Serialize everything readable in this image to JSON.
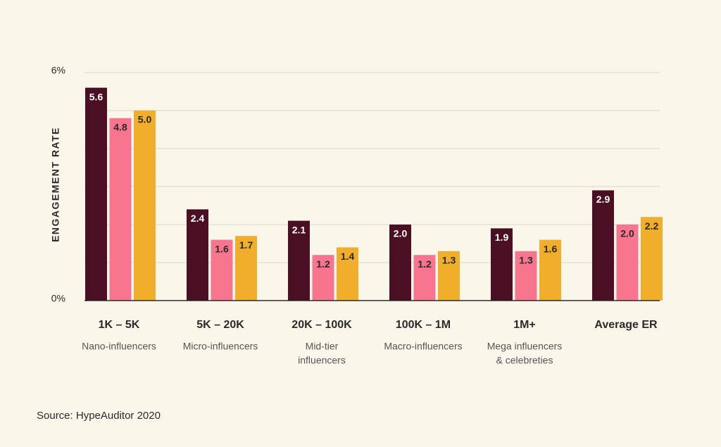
{
  "chart_data": {
    "type": "bar",
    "y_label": "ENGAGEMENT RATE",
    "source": "Source: HypeAuditor 2020",
    "categories": [
      "1K – 5K",
      "5K – 20K",
      "20K – 100K",
      "100K – 1M",
      "1M+",
      "Average ER"
    ],
    "category_descriptions": [
      [
        "Nano-influencers"
      ],
      [
        "Micro-influencers"
      ],
      [
        "Mid-tier",
        "influencers"
      ],
      [
        "Macro-influencers"
      ],
      [
        "Mega influencers",
        "& celebreties"
      ],
      []
    ],
    "series": [
      {
        "color": "#4a0f22",
        "label_color": "#ffffff",
        "values": [
          5.6,
          2.4,
          2.1,
          2.0,
          1.9,
          2.9
        ],
        "value_labels": [
          "5.6",
          "2.4",
          "2.1",
          "2.0",
          "1.9",
          "2.9"
        ]
      },
      {
        "color": "#f7758f",
        "label_color": "#2a2a2a",
        "values": [
          4.8,
          1.6,
          1.2,
          1.2,
          1.3,
          2.0
        ],
        "value_labels": [
          "4.8",
          "1.6",
          "1.2",
          "1.2",
          "1.3",
          "2.0"
        ]
      },
      {
        "color": "#f0ae2b",
        "label_color": "#2a2a2a",
        "values": [
          5.0,
          1.7,
          1.4,
          1.3,
          1.6,
          2.2
        ],
        "value_labels": [
          "5.0",
          "1.7",
          "1.4",
          "1.3",
          "1.6",
          "2.2"
        ]
      }
    ],
    "ylim": [
      0,
      6
    ],
    "yticks": [
      {
        "value": 0,
        "label": "0%"
      },
      {
        "value": 1,
        "label": null
      },
      {
        "value": 2,
        "label": null
      },
      {
        "value": 3,
        "label": null
      },
      {
        "value": 4,
        "label": null
      },
      {
        "value": 5,
        "label": null
      },
      {
        "value": 6,
        "label": "6%"
      }
    ],
    "grid": true
  }
}
